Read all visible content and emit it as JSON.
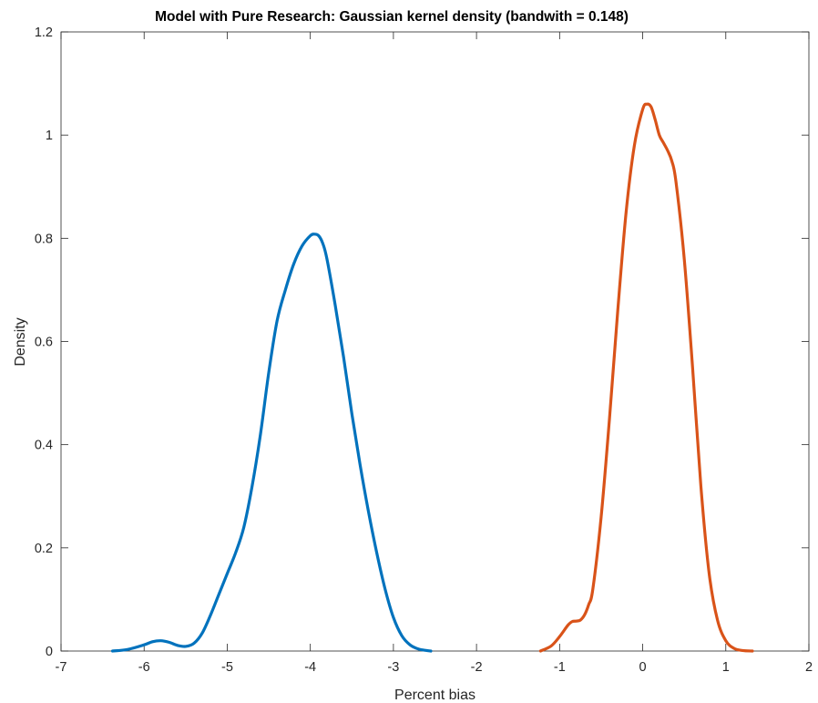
{
  "chart_data": {
    "type": "line",
    "title": "Model with Pure Research: Gaussian kernel density (bandwith = 0.148)",
    "xlabel": "Percent bias",
    "ylabel": "Density",
    "xlim": [
      -7,
      2
    ],
    "ylim": [
      0,
      1.2
    ],
    "xticks": [
      -7,
      -6,
      -5,
      -4,
      -3,
      -2,
      -1,
      0,
      1,
      2
    ],
    "xtick_labels": [
      "-7",
      "-6",
      "-5",
      "-4",
      "-3",
      "-2",
      "-1",
      "0",
      "1",
      "2"
    ],
    "yticks": [
      0,
      0.2,
      0.4,
      0.6,
      0.8,
      1,
      1.2
    ],
    "ytick_labels": [
      "0",
      "0.2",
      "0.4",
      "0.6",
      "0.8",
      "1",
      "1.2"
    ],
    "grid": false,
    "box": true,
    "series": [
      {
        "color": "#0072BD",
        "x": [
          -6.38,
          -6.2,
          -6.0,
          -5.9,
          -5.8,
          -5.7,
          -5.6,
          -5.5,
          -5.4,
          -5.3,
          -5.2,
          -5.1,
          -5.0,
          -4.9,
          -4.8,
          -4.7,
          -4.6,
          -4.5,
          -4.4,
          -4.3,
          -4.2,
          -4.1,
          -4.0,
          -3.95,
          -3.9,
          -3.85,
          -3.8,
          -3.7,
          -3.6,
          -3.5,
          -3.4,
          -3.3,
          -3.2,
          -3.1,
          -3.0,
          -2.9,
          -2.8,
          -2.7,
          -2.6,
          -2.55
        ],
        "y": [
          0.0,
          0.003,
          0.012,
          0.018,
          0.02,
          0.017,
          0.011,
          0.009,
          0.015,
          0.035,
          0.07,
          0.11,
          0.15,
          0.19,
          0.24,
          0.32,
          0.42,
          0.54,
          0.64,
          0.7,
          0.75,
          0.785,
          0.805,
          0.808,
          0.805,
          0.79,
          0.76,
          0.67,
          0.57,
          0.46,
          0.36,
          0.27,
          0.19,
          0.12,
          0.065,
          0.03,
          0.012,
          0.004,
          0.001,
          0.0
        ]
      },
      {
        "color": "#D95319",
        "x": [
          -1.23,
          -1.1,
          -1.0,
          -0.9,
          -0.85,
          -0.8,
          -0.75,
          -0.7,
          -0.65,
          -0.6,
          -0.5,
          -0.4,
          -0.3,
          -0.2,
          -0.1,
          0.0,
          0.05,
          0.1,
          0.15,
          0.2,
          0.25,
          0.3,
          0.35,
          0.4,
          0.5,
          0.6,
          0.7,
          0.8,
          0.9,
          1.0,
          1.1,
          1.2,
          1.32
        ],
        "y": [
          0.0,
          0.01,
          0.028,
          0.05,
          0.057,
          0.058,
          0.06,
          0.07,
          0.09,
          0.12,
          0.26,
          0.45,
          0.66,
          0.85,
          0.98,
          1.05,
          1.06,
          1.055,
          1.03,
          1.0,
          0.985,
          0.97,
          0.95,
          0.91,
          0.76,
          0.55,
          0.32,
          0.15,
          0.06,
          0.02,
          0.005,
          0.001,
          0.0
        ]
      }
    ]
  }
}
